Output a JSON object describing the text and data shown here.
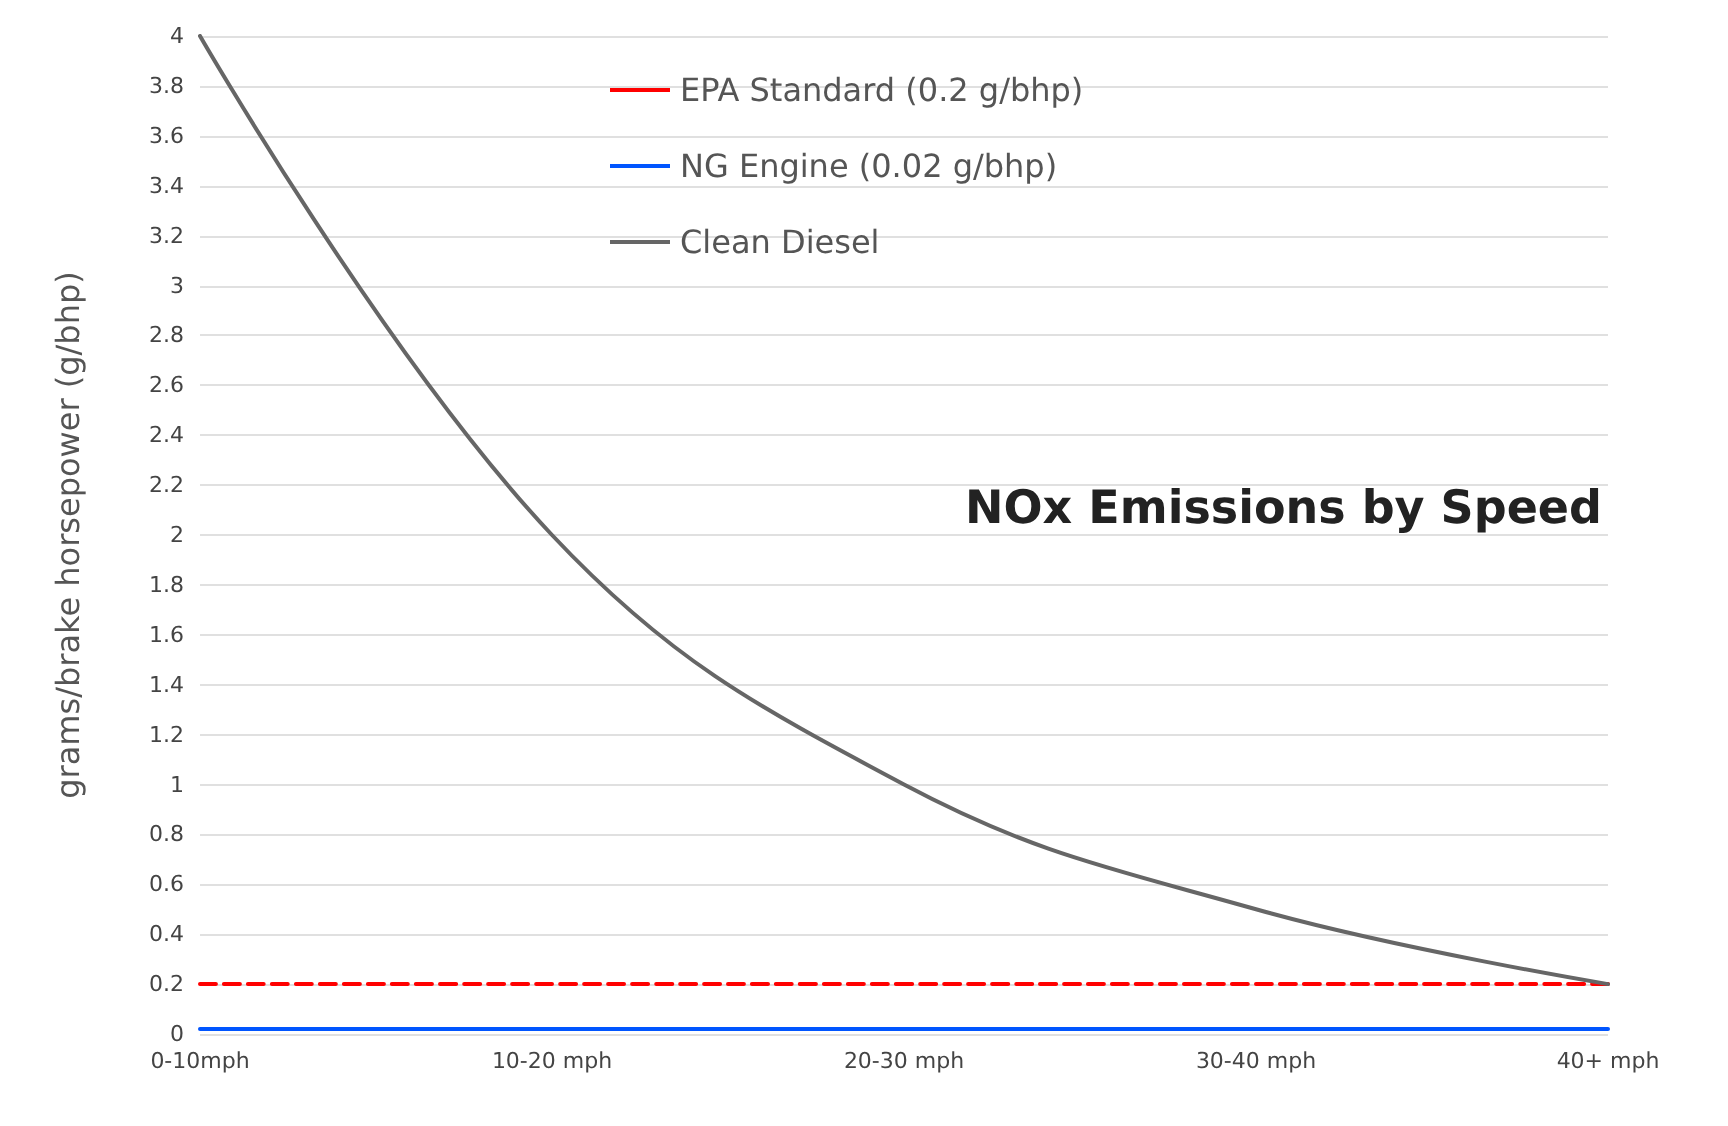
{
  "chart_data": {
    "type": "line",
    "title": "NOx Emissions by Speed",
    "ylabel": "grams/brake horsepower (g/bhp)",
    "categories": [
      "0-10mph",
      "10-20 mph",
      "20-30 mph",
      "30-40 mph",
      "40+ mph"
    ],
    "series": [
      {
        "name": "EPA Standard (0.2 g/bhp)",
        "color": "#ff0000",
        "values": [
          0.2,
          0.2,
          0.2,
          0.2,
          0.2
        ],
        "line_style": "dashed"
      },
      {
        "name": "NG Engine (0.02 g/bhp)",
        "color": "#0055ff",
        "values": [
          0.02,
          0.02,
          0.02,
          0.02,
          0.02
        ],
        "line_style": "solid"
      },
      {
        "name": "Clean Diesel",
        "color": "#666666",
        "values": [
          4,
          2,
          1,
          0.5,
          0.2
        ],
        "line_style": "solid"
      }
    ],
    "ylim": [
      0,
      4
    ],
    "yticks": [
      0,
      0.2,
      0.4,
      0.6,
      0.8,
      1,
      1.2,
      1.4,
      1.6,
      1.8,
      2,
      2.2,
      2.4,
      2.6,
      2.8,
      3,
      3.2,
      3.4,
      3.6,
      3.8,
      4
    ],
    "grid": "y",
    "legend": "top",
    "marker": "none"
  }
}
